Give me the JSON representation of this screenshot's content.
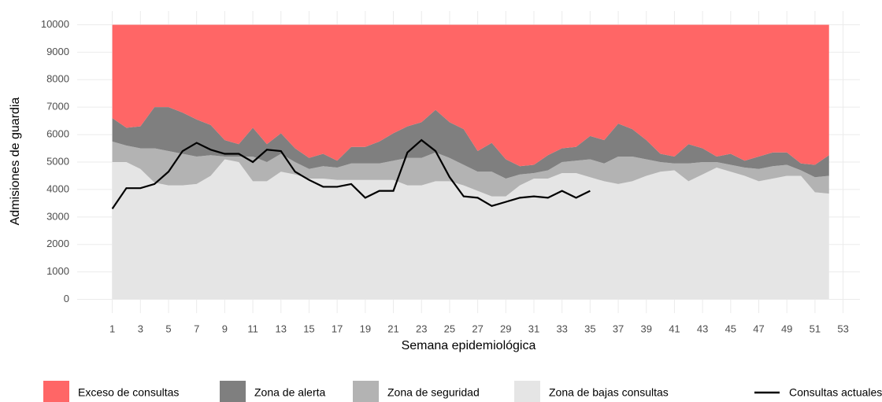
{
  "chart_data": {
    "type": "area",
    "x_label": "Semana epidemiológica",
    "y_label": "Admisiones de guardia",
    "x": [
      1,
      2,
      3,
      4,
      5,
      6,
      7,
      8,
      9,
      10,
      11,
      12,
      13,
      14,
      15,
      16,
      17,
      18,
      19,
      20,
      21,
      22,
      23,
      24,
      25,
      26,
      27,
      28,
      29,
      30,
      31,
      32,
      33,
      34,
      35,
      36,
      37,
      38,
      39,
      40,
      41,
      42,
      43,
      44,
      45,
      46,
      47,
      48,
      49,
      50,
      51,
      52
    ],
    "series": [
      {
        "name": "Zona de bajas consultas",
        "color": "#e5e5e5",
        "stacked": true,
        "values": [
          5000,
          5000,
          4750,
          4250,
          4150,
          4150,
          4200,
          4500,
          5100,
          5000,
          4300,
          4300,
          4650,
          4550,
          4400,
          4400,
          4350,
          4350,
          4350,
          4350,
          4350,
          4150,
          4150,
          4300,
          4300,
          4150,
          3950,
          3750,
          3750,
          4150,
          4400,
          4400,
          4600,
          4600,
          4450,
          4300,
          4200,
          4300,
          4500,
          4650,
          4700,
          4300,
          4550,
          4800,
          4650,
          4500,
          4300,
          4400,
          4500,
          4500,
          3900,
          3850
        ]
      },
      {
        "name": "Zona de seguridad",
        "color": "#b3b3b3",
        "stacked": true,
        "values": [
          750,
          600,
          750,
          1250,
          1250,
          1150,
          1000,
          750,
          100,
          200,
          900,
          700,
          650,
          450,
          350,
          450,
          450,
          600,
          600,
          600,
          700,
          1000,
          1000,
          1050,
          850,
          750,
          700,
          900,
          650,
          400,
          200,
          300,
          400,
          450,
          650,
          650,
          1000,
          900,
          600,
          350,
          250,
          650,
          450,
          200,
          250,
          300,
          450,
          450,
          400,
          200,
          550,
          650
        ]
      },
      {
        "name": "Zona de alerta",
        "color": "#7f7f7f",
        "stacked": true,
        "values": [
          850,
          650,
          800,
          1500,
          1600,
          1500,
          1350,
          1100,
          600,
          450,
          1050,
          650,
          750,
          500,
          400,
          450,
          250,
          600,
          600,
          800,
          1000,
          1150,
          1300,
          1550,
          1300,
          1300,
          750,
          1050,
          700,
          300,
          300,
          550,
          500,
          500,
          850,
          850,
          1200,
          1000,
          700,
          300,
          250,
          700,
          500,
          200,
          400,
          250,
          450,
          500,
          450,
          250,
          450,
          750
        ]
      },
      {
        "name": "Exceso de consultas",
        "color": "#ff6666",
        "stacked": true,
        "values": [
          3400,
          3750,
          3700,
          3000,
          3000,
          3200,
          3450,
          3650,
          4200,
          4350,
          3750,
          4350,
          3950,
          4500,
          4850,
          4700,
          4950,
          4450,
          4450,
          4250,
          3950,
          3700,
          3550,
          3100,
          3550,
          3800,
          4600,
          4300,
          4900,
          5150,
          5100,
          4750,
          4500,
          4450,
          4050,
          4200,
          3600,
          3800,
          4200,
          4700,
          4800,
          4350,
          4500,
          4800,
          4700,
          4950,
          4800,
          4650,
          4650,
          5050,
          5100,
          4750
        ]
      },
      {
        "name": "Consultas actuales",
        "color": "#000000",
        "stacked": false,
        "values": [
          3300,
          4050,
          4050,
          4200,
          4650,
          5400,
          5700,
          5450,
          5300,
          5300,
          5000,
          5450,
          5400,
          4650,
          4350,
          4100,
          4100,
          4200,
          3700,
          3950,
          3950,
          5350,
          5800,
          5400,
          4450,
          3750,
          3700,
          3400,
          3550,
          3700,
          3750,
          3700,
          3950,
          3700,
          3950,
          null,
          null,
          null,
          null,
          null,
          null,
          null,
          null,
          null,
          null,
          null,
          null,
          null,
          null,
          null,
          null,
          null
        ]
      }
    ],
    "legend_order": [
      3,
      2,
      1,
      0,
      4
    ],
    "xlim": [
      -1.5,
      54.2
    ],
    "xticks": [
      1,
      3,
      5,
      7,
      9,
      11,
      13,
      15,
      17,
      19,
      21,
      23,
      25,
      27,
      29,
      31,
      33,
      35,
      37,
      39,
      41,
      43,
      45,
      47,
      49,
      51,
      53
    ],
    "ylim": [
      -500,
      10500
    ],
    "yticks": [
      0,
      1000,
      2000,
      3000,
      4000,
      5000,
      6000,
      7000,
      8000,
      9000,
      10000
    ],
    "grid": true,
    "legend": "bottom"
  }
}
